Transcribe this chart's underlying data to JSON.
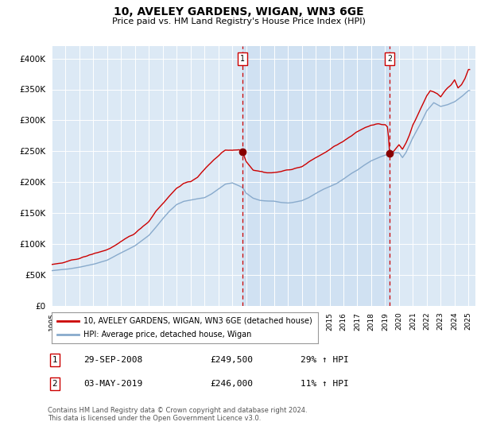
{
  "title": "10, AVELEY GARDENS, WIGAN, WN3 6GE",
  "subtitle": "Price paid vs. HM Land Registry's House Price Index (HPI)",
  "plot_bg_color": "#dce9f5",
  "shade_color": "#c8ddf0",
  "ylim": [
    0,
    420000
  ],
  "xlim_start": 1995.0,
  "xlim_end": 2025.5,
  "yticks": [
    0,
    50000,
    100000,
    150000,
    200000,
    250000,
    300000,
    350000,
    400000
  ],
  "ytick_labels": [
    "£0",
    "£50K",
    "£100K",
    "£150K",
    "£200K",
    "£250K",
    "£300K",
    "£350K",
    "£400K"
  ],
  "marker1_x": 2008.75,
  "marker1_y": 249500,
  "marker1_label": "29-SEP-2008",
  "marker1_price": "£249,500",
  "marker1_hpi": "29% ↑ HPI",
  "marker2_x": 2019.33,
  "marker2_y": 246000,
  "marker2_label": "03-MAY-2019",
  "marker2_price": "£246,000",
  "marker2_hpi": "11% ↑ HPI",
  "line1_color": "#cc0000",
  "line2_color": "#88aacc",
  "legend1_label": "10, AVELEY GARDENS, WIGAN, WN3 6GE (detached house)",
  "legend2_label": "HPI: Average price, detached house, Wigan",
  "footnote": "Contains HM Land Registry data © Crown copyright and database right 2024.\nThis data is licensed under the Open Government Licence v3.0."
}
